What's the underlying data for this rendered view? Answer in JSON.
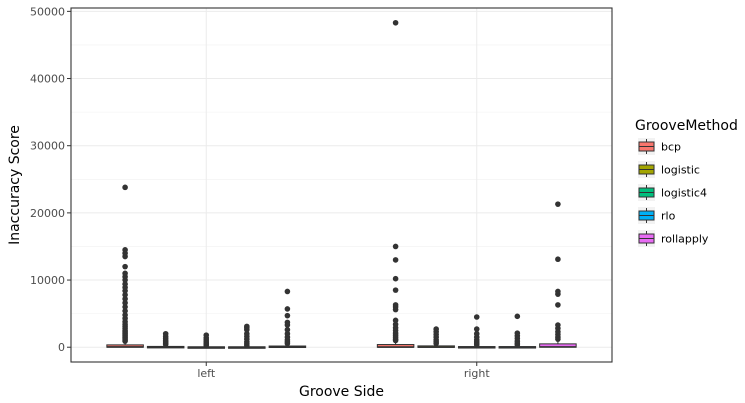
{
  "chart_data": {
    "type": "box",
    "xlabel": "Groove Side",
    "ylabel": "Inaccuracy Score",
    "ylim": [
      -2200,
      50500
    ],
    "yticks": [
      0,
      10000,
      20000,
      30000,
      40000,
      50000
    ],
    "grid": true,
    "legend": {
      "title": "GrooveMethod",
      "position": "right"
    },
    "categories": [
      "left",
      "right"
    ],
    "series": [
      {
        "name": "bcp",
        "color": "#F8766D",
        "boxes": [
          {
            "category": "left",
            "q1": 0,
            "median": 40,
            "q3": 350,
            "lower": 0,
            "upper": 800,
            "outliers": [
              900,
              1100,
              1300,
              1500,
              1700,
              1900,
              2100,
              2300,
              2500,
              2800,
              3100,
              3400,
              3800,
              4300,
              4800,
              5400,
              6000,
              6600,
              7200,
              7800,
              8400,
              8900,
              9400,
              10000,
              10500,
              11000,
              12000,
              13500,
              14000,
              14500,
              23800
            ]
          },
          {
            "category": "right",
            "q1": 0,
            "median": 30,
            "q3": 400,
            "lower": 0,
            "upper": 900,
            "outliers": [
              1000,
              1200,
              1500,
              1800,
              2100,
              2500,
              2900,
              3400,
              4000,
              5600,
              6000,
              6300,
              8500,
              10200,
              13000,
              15000,
              48300
            ]
          }
        ]
      },
      {
        "name": "logistic",
        "color": "#A3A500",
        "boxes": [
          {
            "category": "left",
            "q1": 0,
            "median": 20,
            "q3": 120,
            "lower": 0,
            "upper": 300,
            "outliers": [
              400,
              600,
              800,
              1000,
              1300,
              1600,
              2000
            ]
          },
          {
            "category": "right",
            "q1": 0,
            "median": 20,
            "q3": 200,
            "lower": 0,
            "upper": 450,
            "outliers": [
              550,
              800,
              1100,
              1500,
              1900,
              2300,
              2700
            ]
          }
        ]
      },
      {
        "name": "logistic4",
        "color": "#00BF7D",
        "boxes": [
          {
            "category": "left",
            "q1": 0,
            "median": 10,
            "q3": 60,
            "lower": 0,
            "upper": 150,
            "outliers": [
              250,
              400,
              600,
              800,
              1100,
              1400,
              1800
            ]
          },
          {
            "category": "right",
            "q1": 0,
            "median": 10,
            "q3": 100,
            "lower": 0,
            "upper": 250,
            "outliers": [
              350,
              550,
              800,
              1100,
              1500,
              2000,
              2700,
              4500
            ]
          }
        ]
      },
      {
        "name": "rlo",
        "color": "#00B0F6",
        "boxes": [
          {
            "category": "left",
            "q1": 0,
            "median": 10,
            "q3": 60,
            "lower": 0,
            "upper": 150,
            "outliers": [
              250,
              500,
              800,
              1200,
              1600,
              2000,
              2600,
              2900,
              3100
            ]
          },
          {
            "category": "right",
            "q1": 0,
            "median": 15,
            "q3": 100,
            "lower": 0,
            "upper": 250,
            "outliers": [
              350,
              600,
              900,
              1300,
              1700,
              2100,
              4600
            ]
          }
        ]
      },
      {
        "name": "rollapply",
        "color": "#E76BF3",
        "boxes": [
          {
            "category": "left",
            "q1": 0,
            "median": 30,
            "q3": 180,
            "lower": 0,
            "upper": 450,
            "outliers": [
              550,
              800,
              1100,
              1500,
              2000,
              2600,
              3300,
              3700,
              4700,
              5700,
              8300
            ]
          },
          {
            "category": "right",
            "q1": 0,
            "median": 50,
            "q3": 500,
            "lower": 0,
            "upper": 1000,
            "outliers": [
              1200,
              1500,
              1900,
              2300,
              2800,
              3300,
              6300,
              7900,
              8300,
              13100,
              21300
            ]
          }
        ]
      }
    ]
  }
}
